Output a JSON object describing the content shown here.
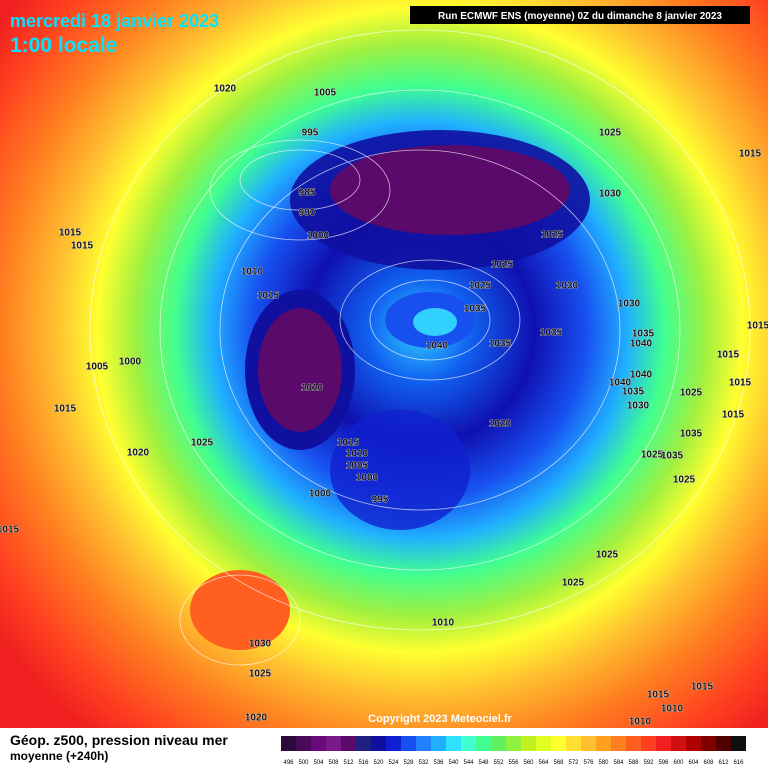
{
  "header": {
    "date": "mercredi 18 janvier 2023",
    "time": "1:00 locale",
    "run": "Run ECMWF ENS (moyenne) 0Z du dimanche 8 janvier 2023"
  },
  "isobar_labels": [
    1020,
    1005,
    995,
    985,
    990,
    1000,
    1010,
    1015,
    1015,
    1015,
    1000,
    1005,
    1015,
    1025,
    1020,
    1010,
    1015,
    1010,
    1005,
    1000,
    1000,
    995,
    1040,
    1035,
    1035,
    1025,
    1025,
    1025,
    1030,
    1035,
    1030,
    1030,
    1025,
    1015,
    1020,
    1035,
    1040,
    1040,
    1040,
    1035,
    1030,
    1025,
    1015,
    1015,
    1015,
    1035,
    1025,
    1035,
    1025,
    1025,
    1025,
    1010,
    1030,
    1025,
    1020,
    1015,
    1015,
    1010,
    1010,
    1015,
    1015
  ],
  "copyright": "Copyright 2023 Meteociel.fr",
  "footer": {
    "title": "Géop. z500, pression niveau mer",
    "subtitle": "moyenne  (+240h)"
  },
  "scale": {
    "labels": [
      496,
      500,
      504,
      508,
      512,
      516,
      520,
      524,
      528,
      532,
      536,
      540,
      544,
      548,
      552,
      556,
      560,
      564,
      568,
      572,
      576,
      580,
      584,
      588,
      592,
      596,
      600,
      604,
      608,
      612,
      616
    ],
    "colors": [
      "#2a0a3a",
      "#4a0a5a",
      "#6a0a7a",
      "#7a1a8a",
      "#5a0a6a",
      "#202080",
      "#1010a0",
      "#1020d0",
      "#1850f0",
      "#2080ff",
      "#20b0ff",
      "#30e0ff",
      "#40ffd0",
      "#40ff90",
      "#60f060",
      "#90f040",
      "#c0f020",
      "#e0ff20",
      "#ffff30",
      "#ffe030",
      "#ffc030",
      "#ffa020",
      "#ff8020",
      "#ff6020",
      "#ff4020",
      "#f02020",
      "#d01010",
      "#b00000",
      "#800000",
      "#500000",
      "#101010"
    ]
  }
}
